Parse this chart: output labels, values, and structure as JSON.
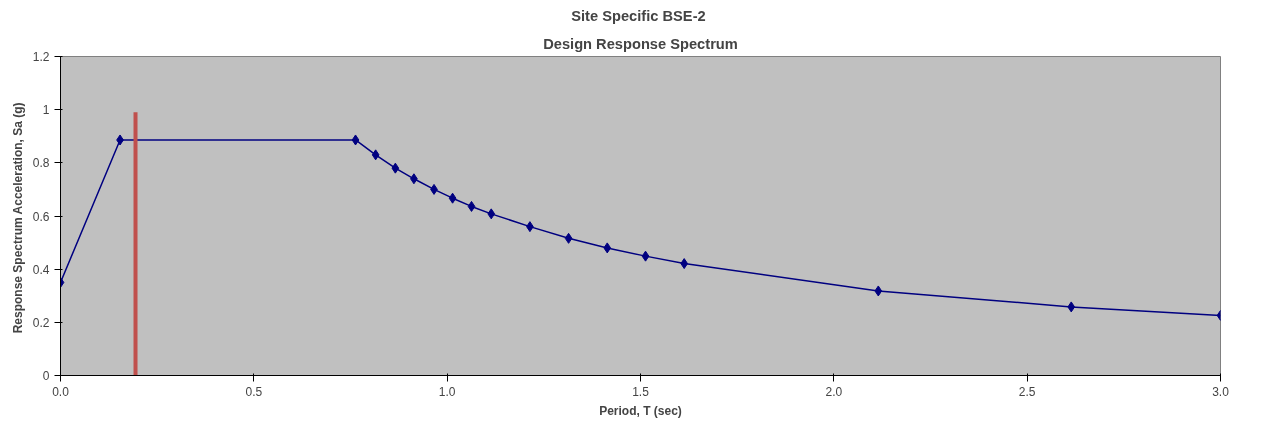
{
  "chart_data": {
    "type": "line",
    "title": "Site Specific  BSE-2",
    "subtitle": "Design Response Spectrum",
    "xlabel": "Period, T (sec)",
    "ylabel": "Response Spectrum Acceleration, Sa  (g)",
    "xlim": [
      0,
      3
    ],
    "xticks": [
      {
        "value": 0,
        "label": "0.0"
      },
      {
        "value": 0.5,
        "label": "0.5"
      },
      {
        "value": 1,
        "label": "1.0"
      },
      {
        "value": 1.5,
        "label": "1.5"
      },
      {
        "value": 2,
        "label": "2.0"
      },
      {
        "value": 2.5,
        "label": "2.5"
      },
      {
        "value": 3,
        "label": "3.0"
      }
    ],
    "ylim": [
      0,
      1.2
    ],
    "yticks": [
      0,
      0.2,
      0.4,
      0.6,
      0.8,
      1,
      1.2
    ],
    "grid": false,
    "series": [
      {
        "color": "#000080",
        "marker": "diamond",
        "x": [
          0,
          0.154,
          0.763,
          0.815,
          0.866,
          0.914,
          0.966,
          1.014,
          1.063,
          1.114,
          1.214,
          1.314,
          1.414,
          1.513,
          1.613,
          2.115,
          2.614,
          3.0
        ],
        "values": [
          0.35,
          0.886,
          0.886,
          0.83,
          0.78,
          0.74,
          0.7,
          0.667,
          0.636,
          0.608,
          0.56,
          0.516,
          0.48,
          0.449,
          0.421,
          0.318,
          0.258,
          0.226
        ]
      },
      {
        "color": "#c0504d",
        "marker": "none",
        "x": [
          0.194,
          0.194
        ],
        "values": [
          0,
          0.99
        ]
      }
    ]
  }
}
